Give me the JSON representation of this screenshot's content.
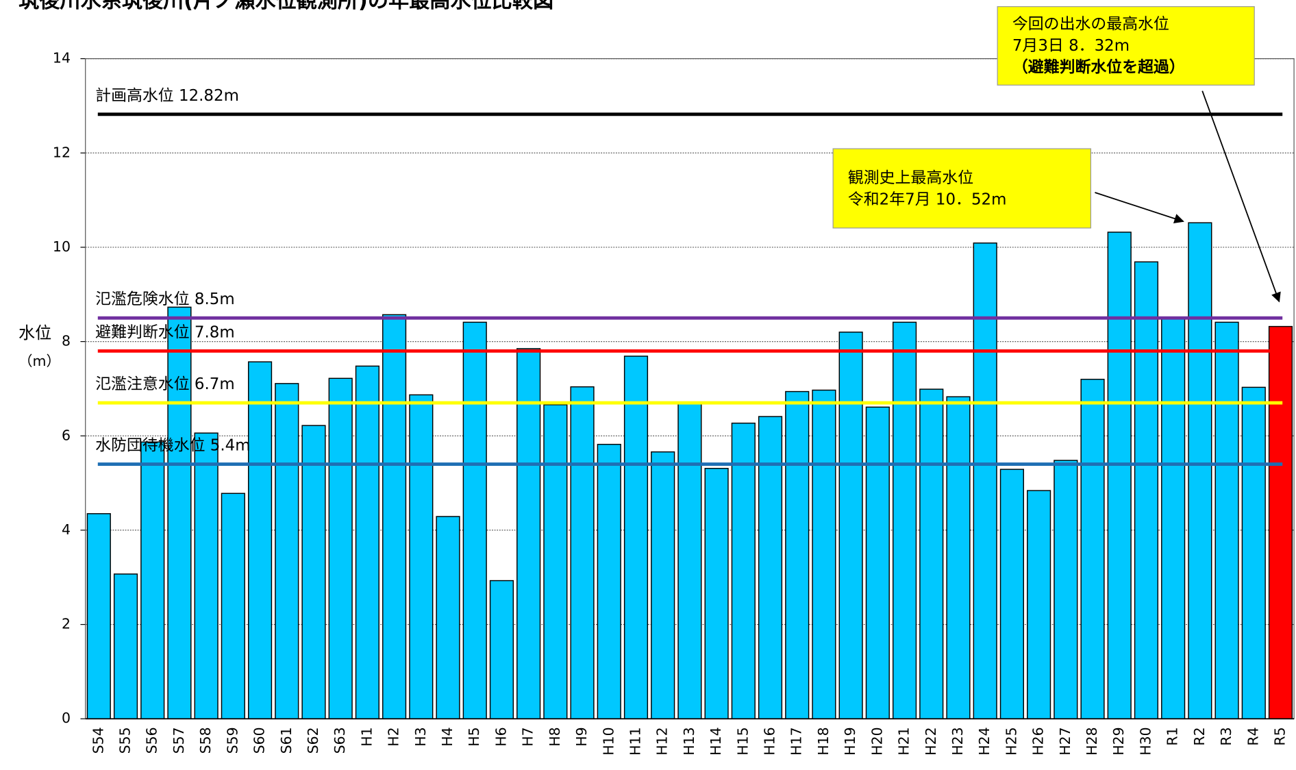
{
  "chart_data": {
    "type": "bar",
    "title": "筑後川水系筑後川(片ノ瀬水位観測所)の年最高水位比較図",
    "y_label": "水位",
    "y_unit": "（m）",
    "categories": [
      "S54",
      "S55",
      "S56",
      "S57",
      "S58",
      "S59",
      "S60",
      "S61",
      "S62",
      "S63",
      "H1",
      "H2",
      "H3",
      "H4",
      "H5",
      "H6",
      "H7",
      "H8",
      "H9",
      "H10",
      "H11",
      "H12",
      "H13",
      "H14",
      "H15",
      "H16",
      "H17",
      "H18",
      "H19",
      "H20",
      "H21",
      "H22",
      "H23",
      "H24",
      "H25",
      "H26",
      "H27",
      "H28",
      "H29",
      "H30",
      "R1",
      "R2",
      "R3",
      "R4",
      "R5"
    ],
    "values": [
      4.35,
      3.07,
      5.87,
      8.73,
      6.06,
      4.78,
      7.57,
      7.11,
      6.22,
      7.22,
      7.48,
      8.57,
      6.87,
      4.29,
      8.41,
      2.93,
      7.85,
      6.66,
      7.04,
      5.82,
      7.69,
      5.66,
      6.71,
      5.31,
      6.27,
      6.41,
      6.94,
      6.97,
      8.2,
      6.61,
      8.41,
      6.99,
      6.83,
      10.09,
      5.29,
      4.84,
      5.48,
      7.2,
      10.32,
      9.69,
      8.48,
      10.52,
      8.41,
      7.03,
      8.32
    ],
    "colors": [
      "#00c8ff",
      "#00c8ff",
      "#00c8ff",
      "#00c8ff",
      "#00c8ff",
      "#00c8ff",
      "#00c8ff",
      "#00c8ff",
      "#00c8ff",
      "#00c8ff",
      "#00c8ff",
      "#00c8ff",
      "#00c8ff",
      "#00c8ff",
      "#00c8ff",
      "#00c8ff",
      "#00c8ff",
      "#00c8ff",
      "#00c8ff",
      "#00c8ff",
      "#00c8ff",
      "#00c8ff",
      "#00c8ff",
      "#00c8ff",
      "#00c8ff",
      "#00c8ff",
      "#00c8ff",
      "#00c8ff",
      "#00c8ff",
      "#00c8ff",
      "#00c8ff",
      "#00c8ff",
      "#00c8ff",
      "#00c8ff",
      "#00c8ff",
      "#00c8ff",
      "#00c8ff",
      "#00c8ff",
      "#00c8ff",
      "#00c8ff",
      "#00c8ff",
      "#00c8ff",
      "#00c8ff",
      "#00c8ff",
      "#ff0000"
    ],
    "ylim": [
      0,
      14
    ],
    "yticks": [
      0,
      2,
      4,
      6,
      8,
      10,
      12,
      14
    ],
    "grid": true,
    "reference_lines": [
      {
        "label": "計画高水位  12.82m",
        "value": 12.82,
        "color": "#000000",
        "label_color": "#000000"
      },
      {
        "label": "氾濫危険水位  8.5m",
        "value": 8.5,
        "color": "#7030a0",
        "label_color": "#7030a0"
      },
      {
        "label": "避難判断水位  7.8m",
        "value": 7.8,
        "color": "#ff0000",
        "label_color": "#ff0000"
      },
      {
        "label": "氾濫注意水位  6.7m",
        "value": 6.7,
        "color": "#ffff00",
        "label_color": "#f0a000"
      },
      {
        "label": "水防団待機水位  5.4m",
        "value": 5.4,
        "color": "#1f6fb4",
        "label_color": "#1f6fb4"
      }
    ],
    "annotations": [
      {
        "lines": [
          "今回の出水の最高水位",
          "7月3日  8．32m",
          "（避難判断水位を超過）"
        ],
        "color": "#ff0000"
      },
      {
        "lines": [
          "観測史上最高水位",
          "令和2年7月  10．52m"
        ],
        "color": "#000000"
      }
    ]
  }
}
